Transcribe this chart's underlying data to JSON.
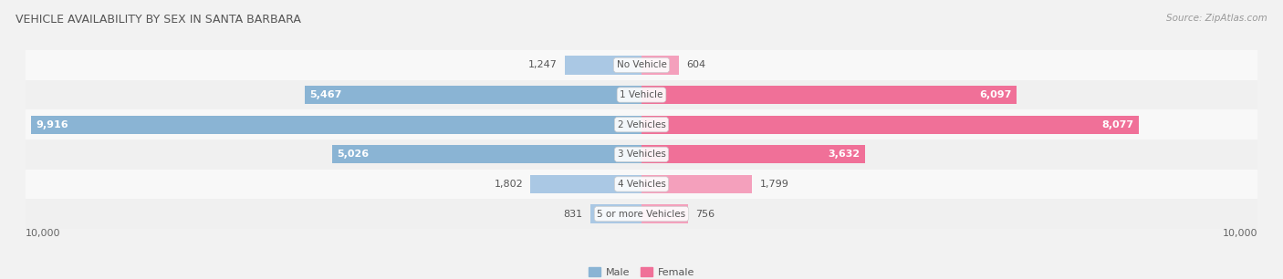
{
  "title": "VEHICLE AVAILABILITY BY SEX IN SANTA BARBARA",
  "source": "Source: ZipAtlas.com",
  "categories": [
    "No Vehicle",
    "1 Vehicle",
    "2 Vehicles",
    "3 Vehicles",
    "4 Vehicles",
    "5 or more Vehicles"
  ],
  "male_values": [
    1247,
    5467,
    9916,
    5026,
    1802,
    831
  ],
  "female_values": [
    604,
    6097,
    8077,
    3632,
    1799,
    756
  ],
  "male_color": "#8ab4d4",
  "female_color": "#f07098",
  "male_color_light": "#aac8e4",
  "female_color_light": "#f4a0bc",
  "male_label": "Male",
  "female_label": "Female",
  "axis_max": 10000,
  "axis_label": "10,000",
  "title_fontsize": 9,
  "bar_height": 0.62,
  "label_fontsize": 8,
  "category_fontsize": 7.5,
  "source_fontsize": 7.5,
  "inside_label_threshold": 3000,
  "row_colors": [
    "#f5f5f5",
    "#eeeeee",
    "#e8e8e8",
    "#f5f5f5",
    "#eeeeee",
    "#e8e8e8"
  ]
}
